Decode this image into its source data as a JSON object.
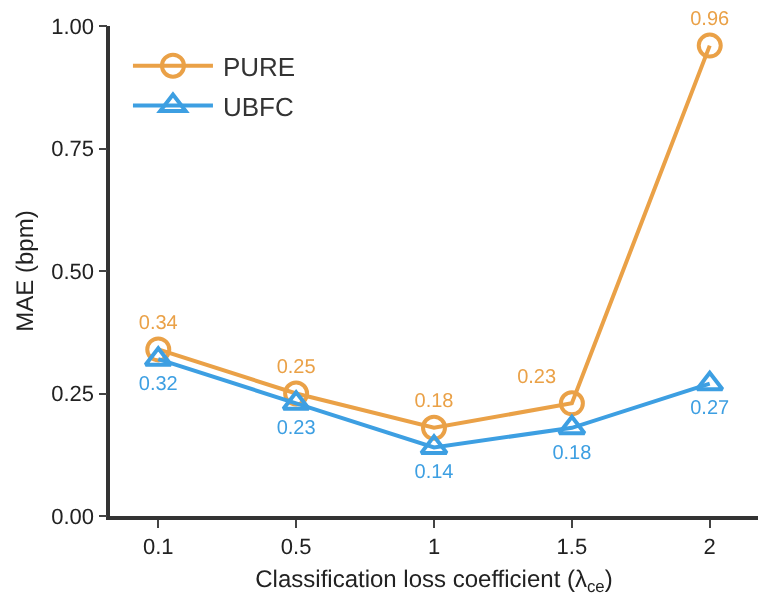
{
  "chart_data": {
    "type": "line",
    "xlabel": "Classification loss coefficient (λ$_{ce}$)",
    "ylabel": "MAE (bpm)",
    "categories": [
      "0.1",
      "0.5",
      "1",
      "1.5",
      "2"
    ],
    "series": [
      {
        "name": "PURE",
        "color": "#eaa147",
        "values": [
          0.34,
          0.25,
          0.18,
          0.23,
          0.96
        ],
        "marker": "circle"
      },
      {
        "name": "UBFC",
        "color": "#3d9fe2",
        "values": [
          0.32,
          0.23,
          0.14,
          0.18,
          0.27
        ],
        "marker": "triangle"
      }
    ],
    "ylim": [
      0,
      1
    ],
    "yticks": [
      {
        "value": 0,
        "label": "0.00"
      },
      {
        "value": 0.25,
        "label": "0.25"
      },
      {
        "value": 0.5,
        "label": "0.50"
      },
      {
        "value": 0.75,
        "label": "0.75"
      },
      {
        "value": 1,
        "label": "1.00"
      }
    ],
    "data_labels": true,
    "grid": false,
    "legend": "top left",
    "line_style": "solid"
  }
}
